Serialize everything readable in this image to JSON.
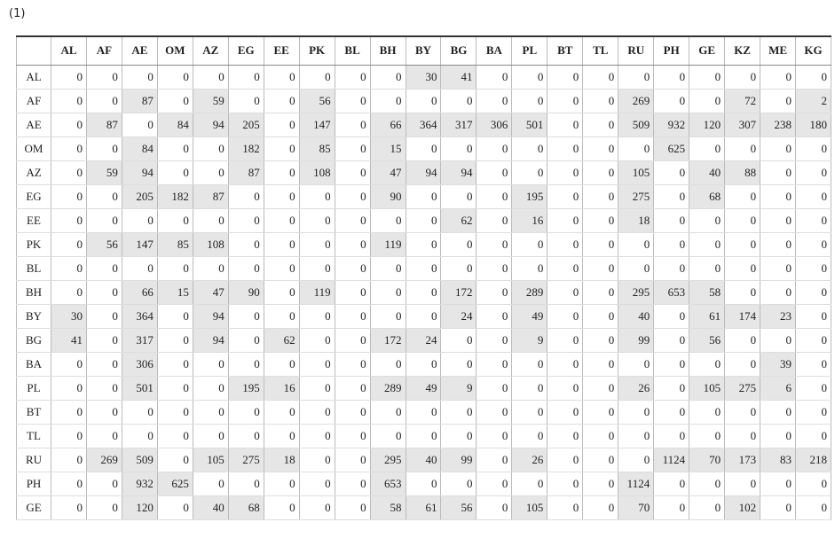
{
  "label": "(1)",
  "table": {
    "columns": [
      "AL",
      "AF",
      "AE",
      "OM",
      "AZ",
      "EG",
      "EE",
      "PK",
      "BL",
      "BH",
      "BY",
      "BG",
      "BA",
      "PL",
      "BT",
      "TL",
      "RU",
      "PH",
      "GE",
      "KZ",
      "ME",
      "KG"
    ],
    "rows": [
      {
        "label": "AL",
        "values": [
          0,
          0,
          0,
          0,
          0,
          0,
          0,
          0,
          0,
          0,
          30,
          41,
          0,
          0,
          0,
          0,
          0,
          0,
          0,
          0,
          0,
          0
        ]
      },
      {
        "label": "AF",
        "values": [
          0,
          0,
          87,
          0,
          59,
          0,
          0,
          56,
          0,
          0,
          0,
          0,
          0,
          0,
          0,
          0,
          269,
          0,
          0,
          72,
          0,
          2
        ]
      },
      {
        "label": "AE",
        "values": [
          0,
          87,
          0,
          84,
          94,
          205,
          0,
          147,
          0,
          66,
          364,
          317,
          306,
          501,
          0,
          0,
          509,
          932,
          120,
          307,
          238,
          180
        ]
      },
      {
        "label": "OM",
        "values": [
          0,
          0,
          84,
          0,
          0,
          182,
          0,
          85,
          0,
          15,
          0,
          0,
          0,
          0,
          0,
          0,
          0,
          625,
          0,
          0,
          0,
          0
        ]
      },
      {
        "label": "AZ",
        "values": [
          0,
          59,
          94,
          0,
          0,
          87,
          0,
          108,
          0,
          47,
          94,
          94,
          0,
          0,
          0,
          0,
          105,
          0,
          40,
          88,
          0,
          0
        ]
      },
      {
        "label": "EG",
        "values": [
          0,
          0,
          205,
          182,
          87,
          0,
          0,
          0,
          0,
          90,
          0,
          0,
          0,
          195,
          0,
          0,
          275,
          0,
          68,
          0,
          0,
          0
        ]
      },
      {
        "label": "EE",
        "values": [
          0,
          0,
          0,
          0,
          0,
          0,
          0,
          0,
          0,
          0,
          0,
          62,
          0,
          16,
          0,
          0,
          18,
          0,
          0,
          0,
          0,
          0
        ]
      },
      {
        "label": "PK",
        "values": [
          0,
          56,
          147,
          85,
          108,
          0,
          0,
          0,
          0,
          119,
          0,
          0,
          0,
          0,
          0,
          0,
          0,
          0,
          0,
          0,
          0,
          0
        ]
      },
      {
        "label": "BL",
        "values": [
          0,
          0,
          0,
          0,
          0,
          0,
          0,
          0,
          0,
          0,
          0,
          0,
          0,
          0,
          0,
          0,
          0,
          0,
          0,
          0,
          0,
          0
        ]
      },
      {
        "label": "BH",
        "values": [
          0,
          0,
          66,
          15,
          47,
          90,
          0,
          119,
          0,
          0,
          0,
          172,
          0,
          289,
          0,
          0,
          295,
          653,
          58,
          0,
          0,
          0
        ]
      },
      {
        "label": "BY",
        "values": [
          30,
          0,
          364,
          0,
          94,
          0,
          0,
          0,
          0,
          0,
          0,
          24,
          0,
          49,
          0,
          0,
          40,
          0,
          61,
          174,
          23,
          0
        ]
      },
      {
        "label": "BG",
        "values": [
          41,
          0,
          317,
          0,
          94,
          0,
          62,
          0,
          0,
          172,
          24,
          0,
          0,
          9,
          0,
          0,
          99,
          0,
          56,
          0,
          0,
          0
        ]
      },
      {
        "label": "BA",
        "values": [
          0,
          0,
          306,
          0,
          0,
          0,
          0,
          0,
          0,
          0,
          0,
          0,
          0,
          0,
          0,
          0,
          0,
          0,
          0,
          0,
          39,
          0
        ]
      },
      {
        "label": "PL",
        "values": [
          0,
          0,
          501,
          0,
          0,
          195,
          16,
          0,
          0,
          289,
          49,
          9,
          0,
          0,
          0,
          0,
          26,
          0,
          105,
          275,
          6,
          0
        ]
      },
      {
        "label": "BT",
        "values": [
          0,
          0,
          0,
          0,
          0,
          0,
          0,
          0,
          0,
          0,
          0,
          0,
          0,
          0,
          0,
          0,
          0,
          0,
          0,
          0,
          0,
          0
        ]
      },
      {
        "label": "TL",
        "values": [
          0,
          0,
          0,
          0,
          0,
          0,
          0,
          0,
          0,
          0,
          0,
          0,
          0,
          0,
          0,
          0,
          0,
          0,
          0,
          0,
          0,
          0
        ]
      },
      {
        "label": "RU",
        "values": [
          0,
          269,
          509,
          0,
          105,
          275,
          18,
          0,
          0,
          295,
          40,
          99,
          0,
          26,
          0,
          0,
          0,
          1124,
          70,
          173,
          83,
          218
        ]
      },
      {
        "label": "PH",
        "values": [
          0,
          0,
          932,
          625,
          0,
          0,
          0,
          0,
          0,
          653,
          0,
          0,
          0,
          0,
          0,
          0,
          1124,
          0,
          0,
          0,
          0,
          0
        ]
      },
      {
        "label": "GE",
        "values": [
          0,
          0,
          120,
          0,
          40,
          68,
          0,
          0,
          0,
          58,
          61,
          56,
          0,
          105,
          0,
          0,
          70,
          0,
          0,
          102,
          0,
          0
        ]
      }
    ]
  }
}
